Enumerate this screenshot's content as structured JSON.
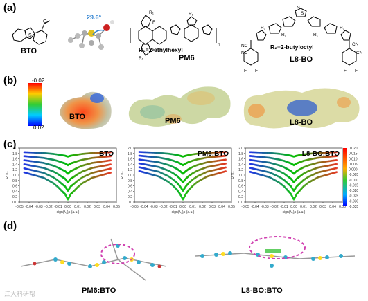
{
  "panels": {
    "a": {
      "label": "(a)",
      "molecules": [
        {
          "name": "BTO"
        },
        {
          "name": "PM6",
          "substituent": "R₁=2-ethylhexyl",
          "r_label": "R₁",
          "f_label": "F",
          "n_label": "n"
        },
        {
          "name": "L8-BO",
          "substituent": "R₂=2-butyloctyl",
          "r_label": "R₂",
          "r1_label": "R₁",
          "n_label": "N",
          "s_label": "S",
          "f_label": "F",
          "cn_label": "NC",
          "cn_label_right": "CN"
        }
      ],
      "dihedral_angle": "29.6°"
    },
    "b": {
      "label": "(b)",
      "esp_scale": {
        "max": "-0.02",
        "min": "0.02"
      },
      "molecules": [
        "BTO",
        "PM6",
        "L8-BO"
      ]
    },
    "c": {
      "label": "(c)",
      "ylabel": "RDG",
      "xlabel": "sign(λ₂)ρ (a.u.)",
      "colorbar_ticks": [
        "0.020",
        "0.015",
        "0.010",
        "0.005",
        "0.000",
        "-0.005",
        "-0.010",
        "-0.015",
        "-0.020",
        "-0.025",
        "-0.030",
        "-0.035"
      ]
    },
    "d": {
      "label": "(d)",
      "complexes": [
        "PM6:BTO",
        "L8-BO:BTO"
      ]
    }
  },
  "watermark": "江大科研帮",
  "chart_data": [
    {
      "type": "scatter",
      "title": "BTO",
      "xlabel": "sign(λ₂)ρ (a.u.)",
      "ylabel": "RDG",
      "xlim": [
        -0.05,
        0.05
      ],
      "ylim": [
        0.0,
        2.0
      ],
      "xticks": [
        -0.05,
        -0.04,
        -0.03,
        -0.02,
        -0.01,
        0.0,
        0.01,
        0.02,
        0.03,
        0.04,
        0.05
      ],
      "yticks": [
        0.0,
        0.2,
        0.4,
        0.6,
        0.8,
        1.0,
        1.2,
        1.4,
        1.6,
        1.8,
        2.0
      ],
      "colorscale": [
        "#1a1aff",
        "#00c000",
        "#ff1a1a"
      ],
      "series": [
        {
          "x": [
            -0.045,
            -0.04,
            -0.035,
            -0.03,
            -0.025,
            -0.02,
            -0.015,
            -0.01,
            -0.006,
            -0.003,
            0.0,
            0.003,
            0.006,
            0.01,
            0.015,
            0.02,
            0.025,
            0.03,
            0.035,
            0.04,
            0.045
          ],
          "y": [
            1.1,
            1.05,
            1.0,
            0.95,
            0.9,
            0.8,
            0.7,
            0.55,
            0.4,
            0.3,
            0.1,
            0.3,
            0.4,
            0.55,
            0.7,
            0.8,
            0.9,
            0.95,
            1.0,
            1.05,
            1.1
          ]
        }
      ]
    },
    {
      "type": "scatter",
      "title": "PM6:BTO",
      "xlabel": "sign(λ₂)ρ (a.u.)",
      "ylabel": "RDG",
      "xlim": [
        -0.05,
        0.05
      ],
      "ylim": [
        0.0,
        2.0
      ],
      "xticks": [
        -0.05,
        -0.04,
        -0.03,
        -0.02,
        -0.01,
        0.0,
        0.01,
        0.02,
        0.03,
        0.04,
        0.05
      ],
      "yticks": [
        0.0,
        0.2,
        0.4,
        0.6,
        0.8,
        1.0,
        1.2,
        1.4,
        1.6,
        1.8,
        2.0
      ],
      "colorscale": [
        "#1a1aff",
        "#00c000",
        "#ff1a1a"
      ],
      "series": [
        {
          "x": [
            -0.045,
            -0.04,
            -0.035,
            -0.03,
            -0.025,
            -0.02,
            -0.015,
            -0.01,
            -0.006,
            -0.003,
            0.0,
            0.003,
            0.006,
            0.01,
            0.015,
            0.02,
            0.025,
            0.03,
            0.035,
            0.04,
            0.045
          ],
          "y": [
            1.15,
            1.1,
            1.05,
            1.0,
            0.95,
            0.85,
            0.75,
            0.6,
            0.45,
            0.3,
            0.1,
            0.3,
            0.45,
            0.6,
            0.75,
            0.85,
            0.95,
            1.0,
            1.05,
            1.1,
            1.15
          ]
        }
      ]
    },
    {
      "type": "scatter",
      "title": "L8-BO:BTO",
      "xlabel": "sign(λ₂)ρ (a.u.)",
      "ylabel": "RDG",
      "xlim": [
        -0.05,
        0.05
      ],
      "ylim": [
        0.0,
        2.0
      ],
      "xticks": [
        -0.05,
        -0.04,
        -0.03,
        -0.02,
        -0.01,
        0.0,
        0.01,
        0.02,
        0.03,
        0.04,
        0.05
      ],
      "yticks": [
        0.0,
        0.2,
        0.4,
        0.6,
        0.8,
        1.0,
        1.2,
        1.4,
        1.6,
        1.8,
        2.0
      ],
      "colorscale": [
        "#1a1aff",
        "#00c000",
        "#ff1a1a"
      ],
      "series": [
        {
          "x": [
            -0.045,
            -0.04,
            -0.035,
            -0.03,
            -0.025,
            -0.02,
            -0.015,
            -0.01,
            -0.006,
            -0.003,
            0.0,
            0.003,
            0.006,
            0.01,
            0.015,
            0.02,
            0.025,
            0.03,
            0.035,
            0.04,
            0.045
          ],
          "y": [
            1.12,
            1.07,
            1.02,
            0.97,
            0.92,
            0.82,
            0.72,
            0.58,
            0.42,
            0.3,
            0.1,
            0.3,
            0.42,
            0.58,
            0.72,
            0.82,
            0.92,
            0.97,
            1.02,
            1.07,
            1.12
          ]
        }
      ]
    }
  ]
}
